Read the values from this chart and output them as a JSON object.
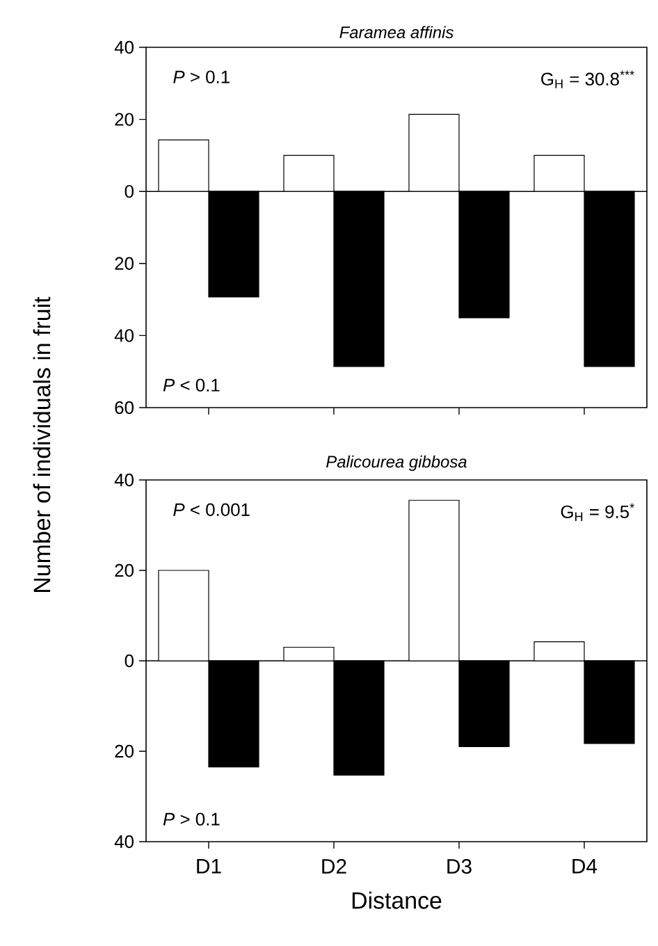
{
  "chart_data": [
    {
      "type": "bar",
      "title": "Faramea affinis",
      "ylabel": "Number of individuals in fruit",
      "categories": [
        null,
        null,
        null,
        null
      ],
      "tick_labels": "y",
      "series": [
        {
          "color": "#ffffff",
          "values": [
            14.3,
            10,
            21.4,
            10
          ]
        },
        {
          "color": "#000000",
          "values": [
            -29.3,
            -48.6,
            -35.1,
            -48.6
          ]
        }
      ],
      "ylim": [
        -60,
        40
      ],
      "yticks": [
        {
          "value": -60,
          "label": "60"
        },
        {
          "value": -40,
          "label": "40"
        },
        {
          "value": -20,
          "label": "20"
        },
        0,
        20,
        40
      ],
      "annotations": [
        "*P* > 0.1",
        "G$_{H}$ = 30.8$^{***}$",
        "*P* < 0.1"
      ]
    },
    {
      "type": "bar",
      "title": "Palicourea gibbosa",
      "xlabel": "Distance",
      "categories": [
        "D1",
        "D2",
        "D3",
        "D4"
      ],
      "series": [
        {
          "color": "#ffffff",
          "values": [
            20,
            3,
            35.5,
            4.2
          ]
        },
        {
          "color": "#000000",
          "values": [
            -23.5,
            -25.3,
            -19,
            -18.3
          ]
        }
      ],
      "ylim": [
        -40,
        40
      ],
      "yticks": [
        {
          "value": -40,
          "label": "40"
        },
        {
          "value": -20,
          "label": "20"
        },
        0,
        20,
        40
      ],
      "annotations": [
        "*P* < 0.001",
        "G$_{H}$ = 9.5$^{*}$",
        "*P* > 0.1"
      ]
    }
  ]
}
